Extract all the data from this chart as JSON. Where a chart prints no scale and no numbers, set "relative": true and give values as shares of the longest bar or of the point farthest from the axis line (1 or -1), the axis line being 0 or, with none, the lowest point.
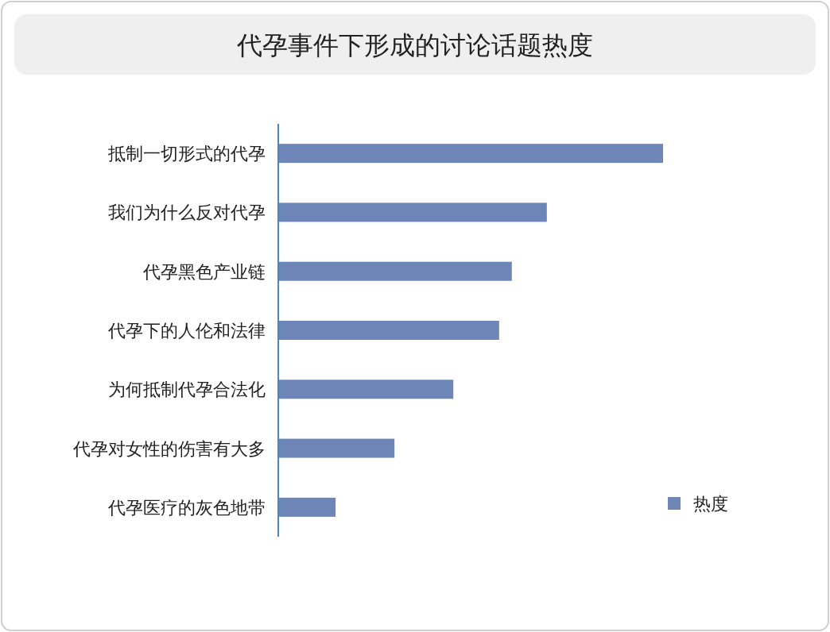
{
  "chart_data": {
    "type": "bar",
    "orientation": "horizontal",
    "relative": true,
    "title": "代孕事件下形成的讨论话题热度",
    "categories": [
      "抵制一切形式的代孕",
      "我们为什么反对代孕",
      "代孕黑色产业链",
      "代孕下的人伦和法律",
      "为何抵制代孕合法化",
      "代孕对女性的伤害有大多",
      "代孕医疗的灰色地带"
    ],
    "series": [
      {
        "name": "热度",
        "color": "#6e85b7",
        "values": [
          1,
          0.698,
          0.607,
          0.574,
          0.455,
          0.302,
          0.149
        ]
      }
    ],
    "legend": "bottom right"
  }
}
